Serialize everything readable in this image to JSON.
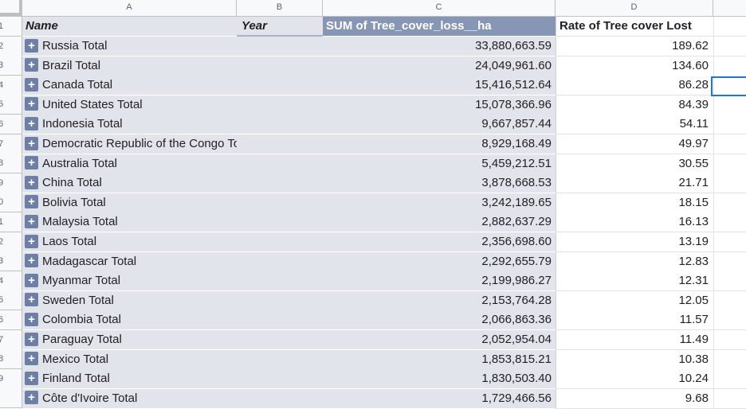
{
  "columns": [
    "A",
    "B",
    "C",
    "D"
  ],
  "row_numbers": [
    "1",
    "2",
    "3",
    "4",
    "5",
    "6",
    "7",
    "8",
    "9",
    "0",
    "1",
    "2",
    "3",
    "4",
    "5",
    "6",
    "7",
    "8",
    "9",
    ""
  ],
  "header": {
    "name": "Name",
    "year": "Year",
    "sum": "SUM of Tree_cover_loss__ha",
    "rate": "Rate of Tree cover Lost"
  },
  "expand_symbol": "+",
  "rows": [
    {
      "name": "Russia Total",
      "sum": "33,880,663.59",
      "rate": "189.62"
    },
    {
      "name": "Brazil Total",
      "sum": "24,049,961.60",
      "rate": "134.60"
    },
    {
      "name": "Canada Total",
      "sum": "15,416,512.64",
      "rate": "86.28"
    },
    {
      "name": "United States Total",
      "sum": "15,078,366.96",
      "rate": "84.39"
    },
    {
      "name": "Indonesia Total",
      "sum": "9,667,857.44",
      "rate": "54.11"
    },
    {
      "name": "Democratic Republic of the Congo Total",
      "sum": "8,929,168.49",
      "rate": "49.97"
    },
    {
      "name": "Australia Total",
      "sum": "5,459,212.51",
      "rate": "30.55"
    },
    {
      "name": "China Total",
      "sum": "3,878,668.53",
      "rate": "21.71"
    },
    {
      "name": "Bolivia Total",
      "sum": "3,242,189.65",
      "rate": "18.15"
    },
    {
      "name": "Malaysia Total",
      "sum": "2,882,637.29",
      "rate": "16.13"
    },
    {
      "name": "Laos Total",
      "sum": "2,356,698.60",
      "rate": "13.19"
    },
    {
      "name": "Madagascar Total",
      "sum": "2,292,655.79",
      "rate": "12.83"
    },
    {
      "name": "Myanmar Total",
      "sum": "2,199,986.27",
      "rate": "12.31"
    },
    {
      "name": "Sweden Total",
      "sum": "2,153,764.28",
      "rate": "12.05"
    },
    {
      "name": "Colombia Total",
      "sum": "2,066,863.36",
      "rate": "11.57"
    },
    {
      "name": "Paraguay Total",
      "sum": "2,052,954.04",
      "rate": "11.49"
    },
    {
      "name": "Mexico Total",
      "sum": "1,853,815.21",
      "rate": "10.38"
    },
    {
      "name": "Finland Total",
      "sum": "1,830,503.40",
      "rate": "10.24"
    },
    {
      "name": "Côte d'Ivoire Total",
      "sum": "1,729,466.56",
      "rate": "9.68"
    }
  ]
}
